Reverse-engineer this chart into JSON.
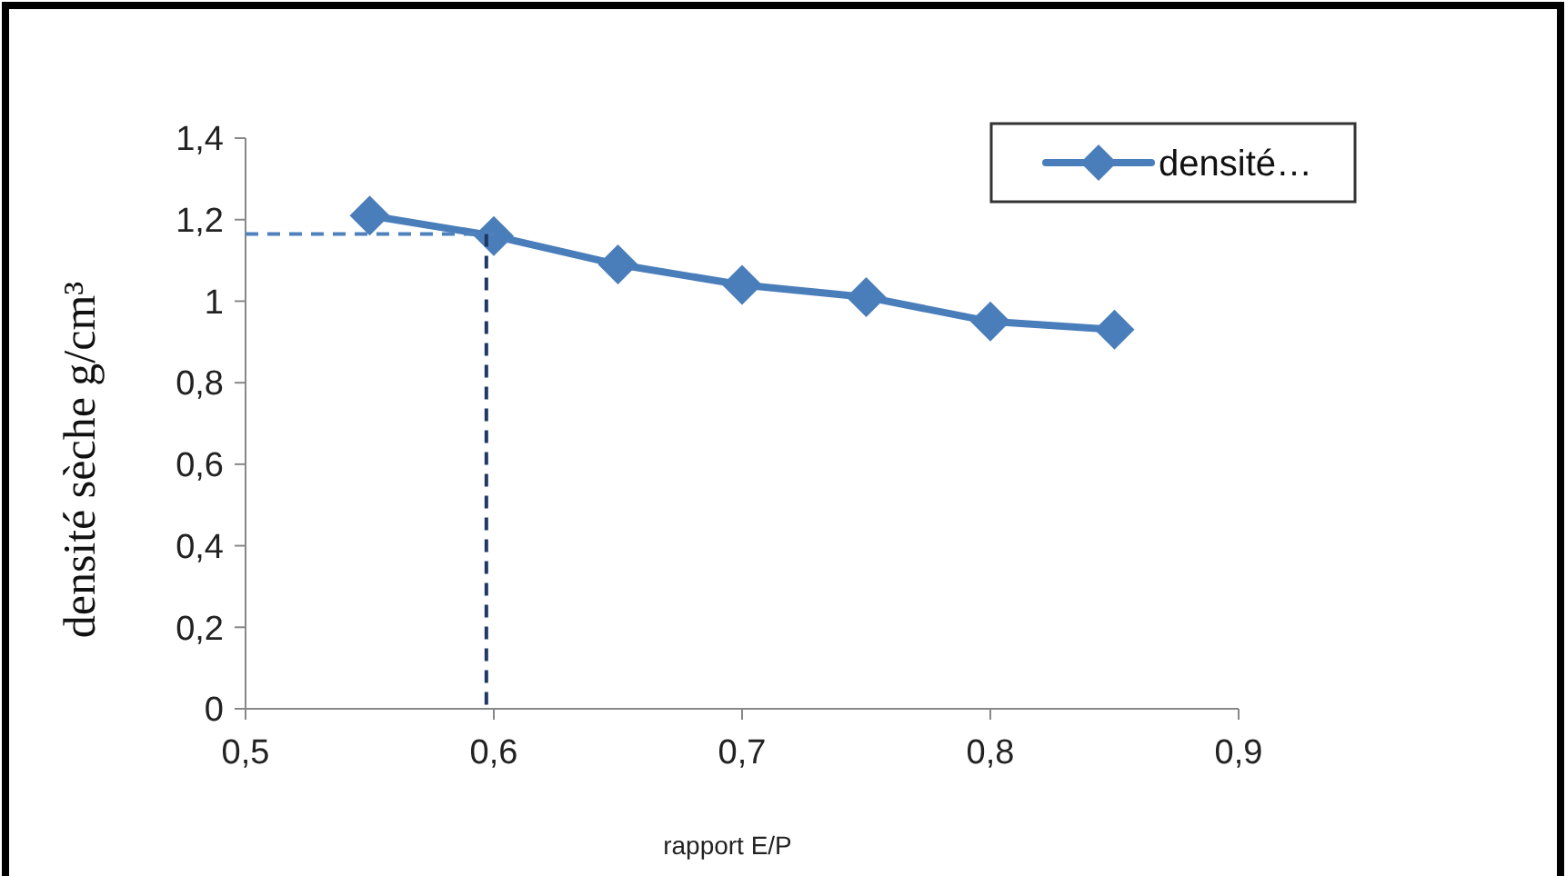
{
  "chart_data": {
    "type": "line",
    "xlabel": "rapport E/P",
    "ylabel": "densité sèche g/cm³",
    "xlim": [
      0.5,
      0.9
    ],
    "xticks": [
      {
        "value": 0.5,
        "label": "0,5"
      },
      {
        "value": 0.6,
        "label": "0,6"
      },
      {
        "value": 0.7,
        "label": "0,7"
      },
      {
        "value": 0.8,
        "label": "0,8"
      },
      {
        "value": 0.9,
        "label": "0,9"
      }
    ],
    "ylim": [
      0,
      1.4
    ],
    "yticks": [
      0,
      {
        "value": 0.2,
        "label": "0,2"
      },
      {
        "value": 0.4,
        "label": "0,4"
      },
      {
        "value": 0.6,
        "label": "0,6"
      },
      {
        "value": 0.8,
        "label": "0,8"
      },
      1,
      {
        "value": 1.2,
        "label": "1,2"
      },
      {
        "value": 1.4,
        "label": "1,4"
      }
    ],
    "grid": false,
    "legend": "top right",
    "series": [
      {
        "name": "densité…",
        "color": "#4a7ebb",
        "x": [
          0.55,
          0.6,
          0.65,
          0.7,
          0.75,
          0.8,
          0.85
        ],
        "values": [
          1.21,
          1.16,
          1.09,
          1.04,
          1.01,
          0.95,
          0.93
        ],
        "marker": "diamond",
        "line_style": "solid"
      },
      {
        "color": "#4f81bd",
        "x": [
          0.5,
          0.6
        ],
        "values": [
          1.165,
          1.165
        ],
        "marker": "none",
        "line_style": "dashed"
      },
      {
        "color": "#1f3864",
        "x": [
          0.597,
          0.597
        ],
        "values": [
          1.165,
          0
        ],
        "marker": "none",
        "line_style": "dashed"
      }
    ]
  }
}
